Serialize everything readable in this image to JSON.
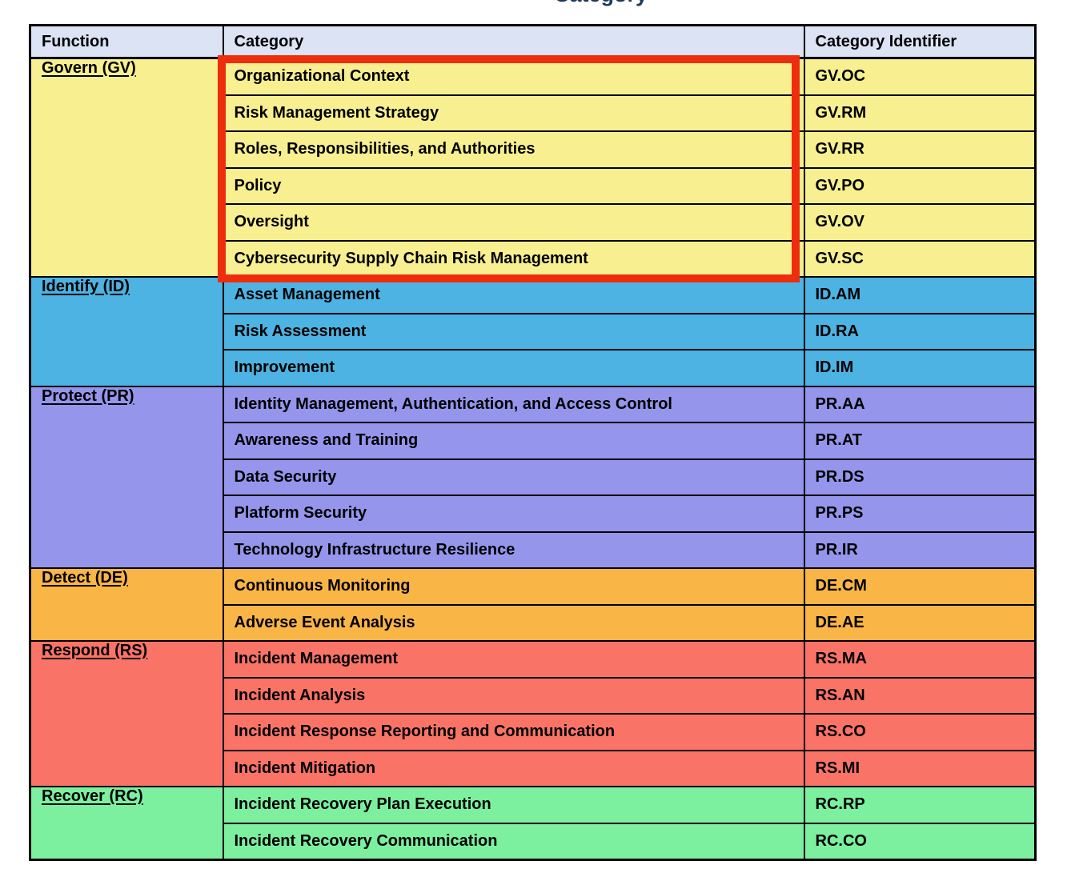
{
  "page": {
    "background": "#ffffff",
    "clipped_title_fragment": "Category",
    "title_color": "#1e3a5f"
  },
  "table": {
    "headers": [
      {
        "label": "Function"
      },
      {
        "label": "Category"
      },
      {
        "label": "Category Identifier"
      }
    ],
    "header_bg": "#dbe3f4",
    "border_color": "#000000",
    "sections": [
      {
        "function": "Govern (GV)",
        "color": "#f8ef90",
        "rows": [
          {
            "category": "Organizational Context",
            "id": "GV.OC"
          },
          {
            "category": "Risk Management Strategy",
            "id": "GV.RM"
          },
          {
            "category": "Roles, Responsibilities, and Authorities",
            "id": "GV.RR"
          },
          {
            "category": "Policy",
            "id": "GV.PO"
          },
          {
            "category": "Oversight",
            "id": "GV.OV"
          },
          {
            "category": "Cybersecurity Supply Chain Risk Management",
            "id": "GV.SC"
          }
        ]
      },
      {
        "function": "Identify (ID)",
        "color": "#4db3e2",
        "rows": [
          {
            "category": "Asset Management",
            "id": "ID.AM"
          },
          {
            "category": "Risk Assessment",
            "id": "ID.RA"
          },
          {
            "category": "Improvement",
            "id": "ID.IM"
          }
        ]
      },
      {
        "function": "Protect (PR)",
        "color": "#9595eb",
        "rows": [
          {
            "category": "Identity Management, Authentication, and Access Control",
            "id": "PR.AA"
          },
          {
            "category": "Awareness and Training",
            "id": "PR.AT"
          },
          {
            "category": "Data Security",
            "id": "PR.DS"
          },
          {
            "category": "Platform Security",
            "id": "PR.PS"
          },
          {
            "category": "Technology Infrastructure Resilience",
            "id": "PR.IR"
          }
        ]
      },
      {
        "function": "Detect (DE)",
        "color": "#f9b546",
        "rows": [
          {
            "category": "Continuous Monitoring",
            "id": "DE.CM"
          },
          {
            "category": "Adverse Event Analysis",
            "id": "DE.AE"
          }
        ]
      },
      {
        "function": "Respond (RS)",
        "color": "#f97467",
        "rows": [
          {
            "category": "Incident Management",
            "id": "RS.MA"
          },
          {
            "category": "Incident Analysis",
            "id": "RS.AN"
          },
          {
            "category": "Incident Response Reporting and Communication",
            "id": "RS.CO"
          },
          {
            "category": "Incident Mitigation",
            "id": "RS.MI"
          }
        ]
      },
      {
        "function": "Recover (RC)",
        "color": "#7df09f",
        "rows": [
          {
            "category": "Incident Recovery Plan Execution",
            "id": "RC.RP"
          },
          {
            "category": "Incident Recovery Communication",
            "id": "RC.CO"
          }
        ]
      }
    ]
  },
  "annotation": {
    "box_color": "#ee2d0e"
  }
}
